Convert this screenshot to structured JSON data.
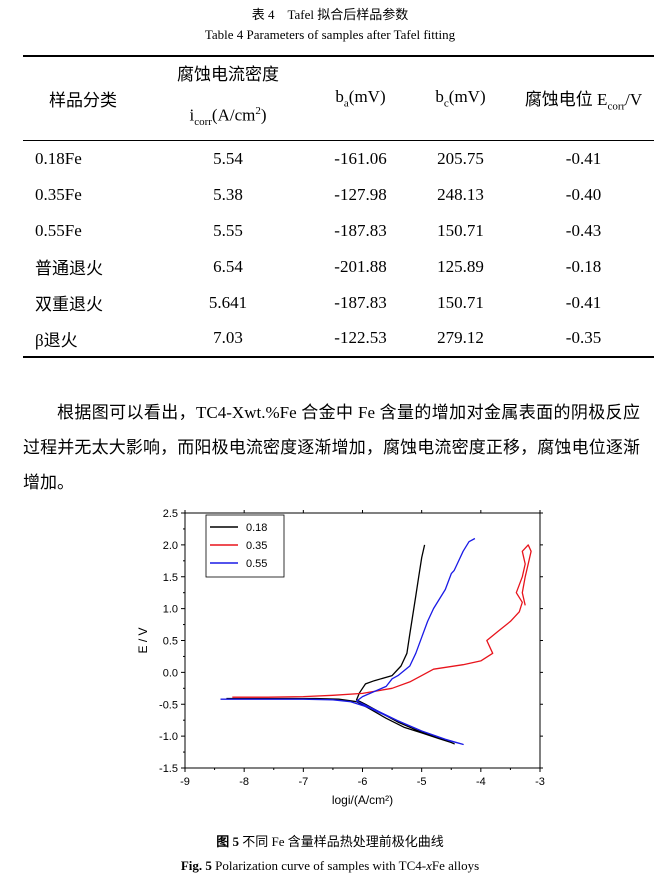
{
  "table_caption_cn": "表 4　Tafel 拟合后样品参数",
  "table_caption_en": "Table 4 Parameters of samples after Tafel fitting",
  "table": {
    "header": {
      "sample": "样品分类",
      "icorr_cn": "腐蚀电流密度",
      "icorr_sym": "i",
      "icorr_sub": "corr",
      "icorr_unit": "(A/cm",
      "icorr_sup": "2",
      "icorr_close": ")",
      "ba_sym": "b",
      "ba_sub": "a",
      "ba_unit": "(mV)",
      "bc_sym": "b",
      "bc_sub": "c",
      "bc_unit": "(mV)",
      "ecorr_cn": "腐蚀电位 E",
      "ecorr_sub": "corr",
      "ecorr_unit": "/V"
    },
    "rows": [
      {
        "sample": "0.18Fe",
        "icorr": "5.54",
        "ba": "-161.06",
        "bc": "205.75",
        "ecorr": "-0.41"
      },
      {
        "sample": "0.35Fe",
        "icorr": "5.38",
        "ba": "-127.98",
        "bc": "248.13",
        "ecorr": "-0.40"
      },
      {
        "sample": "0.55Fe",
        "icorr": "5.55",
        "ba": "-187.83",
        "bc": "150.71",
        "ecorr": "-0.43"
      },
      {
        "sample": "普通退火",
        "icorr": "6.54",
        "ba": "-201.88",
        "bc": "125.89",
        "ecorr": "-0.18"
      },
      {
        "sample": "双重退火",
        "icorr": "5.641",
        "ba": "-187.83",
        "bc": "150.71",
        "ecorr": "-0.41"
      },
      {
        "sample": "β退火",
        "icorr": "7.03",
        "ba": "-122.53",
        "bc": "279.12",
        "ecorr": "-0.35"
      }
    ]
  },
  "paragraph": "根据图可以看出，TC4-Xwt.%Fe 合金中 Fe 含量的增加对金属表面的阴极反应过程并无太大影响，而阳极电流密度逐渐增加，腐蚀电流密度正移，腐蚀电位逐渐增加。",
  "figure_caption_cn": {
    "label": "图 5",
    "text": "不同 Fe 含量样品热处理前极化曲线"
  },
  "figure_caption_en": {
    "label": "Fig. 5",
    "text_a": "Polarization curve of samples with TC4-",
    "text_italic": "x",
    "text_b": "Fe alloys"
  },
  "chart_data": {
    "type": "line",
    "xlabel": "logi/(A/cm²)",
    "ylabel": "E / V",
    "xlim": [
      -9,
      -3
    ],
    "ylim": [
      -1.5,
      2.5
    ],
    "xticks": [
      "-9",
      "-8",
      "-7",
      "-6",
      "-5",
      "-4",
      "-3"
    ],
    "yticks": [
      "-1.5",
      "-1.0",
      "-0.5",
      "0.0",
      "0.5",
      "1.0",
      "1.5",
      "2.0",
      "2.5"
    ],
    "legend_position": "top-left",
    "series": [
      {
        "name": "0.18",
        "color": "#000000",
        "points": [
          [
            -8.3,
            -0.41
          ],
          [
            -7.5,
            -0.41
          ],
          [
            -6.8,
            -0.41
          ],
          [
            -6.4,
            -0.42
          ],
          [
            -6.1,
            -0.46
          ],
          [
            -5.9,
            -0.56
          ],
          [
            -5.6,
            -0.72
          ],
          [
            -5.3,
            -0.86
          ],
          [
            -5.0,
            -0.95
          ],
          [
            -4.7,
            -1.04
          ],
          [
            -4.5,
            -1.1
          ],
          [
            -4.45,
            -1.12
          ],
          [
            -4.5,
            -1.1
          ],
          [
            -4.8,
            -1.0
          ],
          [
            -5.1,
            -0.9
          ],
          [
            -5.4,
            -0.78
          ],
          [
            -5.7,
            -0.63
          ],
          [
            -5.95,
            -0.5
          ],
          [
            -6.1,
            -0.43
          ],
          [
            -6.05,
            -0.32
          ],
          [
            -6.0,
            -0.25
          ],
          [
            -5.95,
            -0.18
          ],
          [
            -5.8,
            -0.13
          ],
          [
            -5.5,
            -0.05
          ],
          [
            -5.35,
            0.1
          ],
          [
            -5.25,
            0.3
          ],
          [
            -5.2,
            0.6
          ],
          [
            -5.15,
            0.9
          ],
          [
            -5.1,
            1.2
          ],
          [
            -5.05,
            1.5
          ],
          [
            -5.0,
            1.8
          ],
          [
            -4.95,
            2.0
          ]
        ]
      },
      {
        "name": "0.35",
        "color": "#e8141c",
        "points": [
          [
            -8.2,
            -0.39
          ],
          [
            -7.6,
            -0.39
          ],
          [
            -7.0,
            -0.38
          ],
          [
            -6.5,
            -0.36
          ],
          [
            -6.0,
            -0.33
          ],
          [
            -5.5,
            -0.25
          ],
          [
            -5.2,
            -0.15
          ],
          [
            -5.0,
            -0.05
          ],
          [
            -4.8,
            0.05
          ],
          [
            -4.3,
            0.12
          ],
          [
            -4.0,
            0.18
          ],
          [
            -3.8,
            0.3
          ],
          [
            -3.9,
            0.5
          ],
          [
            -3.7,
            0.65
          ],
          [
            -3.5,
            0.8
          ],
          [
            -3.35,
            0.95
          ],
          [
            -3.3,
            1.1
          ],
          [
            -3.4,
            1.25
          ],
          [
            -3.3,
            1.5
          ],
          [
            -3.25,
            1.7
          ],
          [
            -3.3,
            1.9
          ],
          [
            -3.2,
            2.0
          ],
          [
            -3.15,
            1.9
          ],
          [
            -3.2,
            1.7
          ],
          [
            -3.25,
            1.5
          ],
          [
            -3.3,
            1.25
          ],
          [
            -3.25,
            1.05
          ]
        ]
      },
      {
        "name": "0.55",
        "color": "#1a1ae6",
        "points": [
          [
            -8.4,
            -0.42
          ],
          [
            -7.8,
            -0.42
          ],
          [
            -7.0,
            -0.42
          ],
          [
            -6.5,
            -0.43
          ],
          [
            -6.2,
            -0.46
          ],
          [
            -5.9,
            -0.55
          ],
          [
            -5.6,
            -0.68
          ],
          [
            -5.3,
            -0.8
          ],
          [
            -5.0,
            -0.92
          ],
          [
            -4.7,
            -1.02
          ],
          [
            -4.5,
            -1.08
          ],
          [
            -4.3,
            -1.13
          ],
          [
            -4.6,
            -1.05
          ],
          [
            -5.0,
            -0.92
          ],
          [
            -5.4,
            -0.76
          ],
          [
            -5.8,
            -0.58
          ],
          [
            -6.1,
            -0.45
          ],
          [
            -6.0,
            -0.38
          ],
          [
            -5.8,
            -0.3
          ],
          [
            -5.6,
            -0.22
          ],
          [
            -5.5,
            -0.1
          ],
          [
            -5.4,
            -0.05
          ],
          [
            -5.2,
            0.1
          ],
          [
            -5.1,
            0.3
          ],
          [
            -5.0,
            0.55
          ],
          [
            -4.9,
            0.8
          ],
          [
            -4.8,
            1.0
          ],
          [
            -4.6,
            1.3
          ],
          [
            -4.5,
            1.55
          ],
          [
            -4.45,
            1.6
          ],
          [
            -4.4,
            1.7
          ],
          [
            -4.3,
            1.9
          ],
          [
            -4.2,
            2.05
          ],
          [
            -4.1,
            2.1
          ]
        ]
      }
    ]
  }
}
